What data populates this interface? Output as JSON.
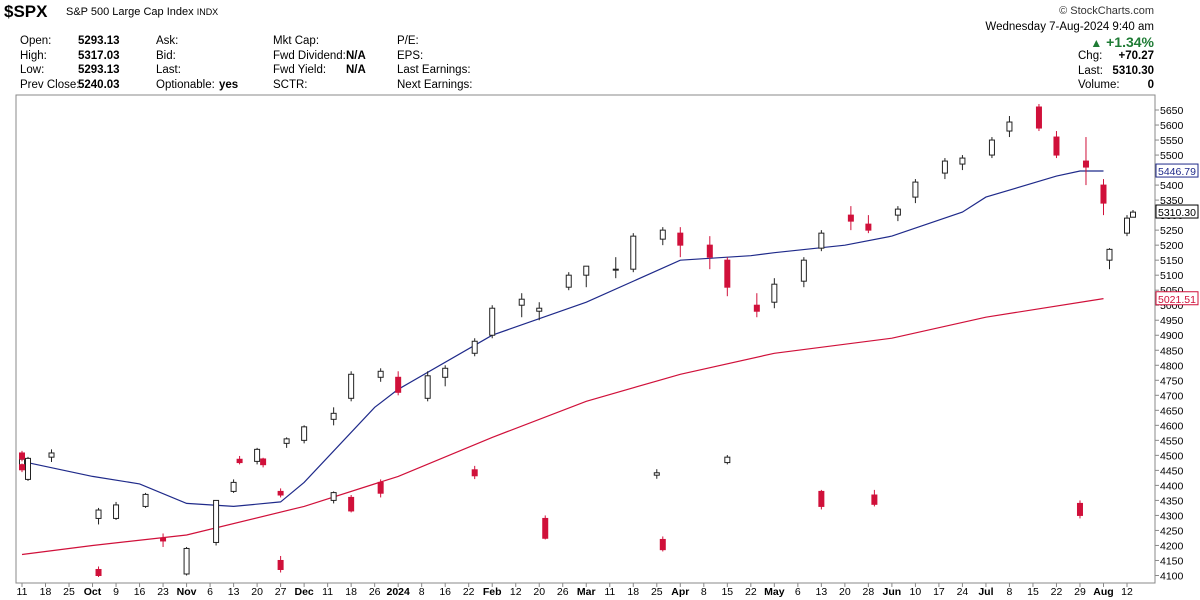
{
  "header": {
    "symbol": "$SPX",
    "name": "S&P 500 Large Cap Index",
    "exchange": "INDX",
    "brand": "© StockCharts.com",
    "datetime": "Wednesday  7-Aug-2024  9:40 am",
    "change_pct": "+1.34%",
    "change_color": "#1e7b34",
    "col1": [
      {
        "label": "Open:",
        "value": "5293.13"
      },
      {
        "label": "High:",
        "value": "5317.03"
      },
      {
        "label": "Low:",
        "value": "5293.13"
      },
      {
        "label": "Prev Close:",
        "value": "5240.03"
      }
    ],
    "col2": [
      {
        "label": "Ask:",
        "value": ""
      },
      {
        "label": "Bid:",
        "value": ""
      },
      {
        "label": "Last:",
        "value": ""
      },
      {
        "label": "Optionable:",
        "value": "yes"
      }
    ],
    "col3": [
      {
        "label": "Mkt Cap:",
        "value": ""
      },
      {
        "label": "Fwd Dividend:",
        "value": "N/A"
      },
      {
        "label": "Fwd Yield:",
        "value": "N/A"
      },
      {
        "label": "SCTR:",
        "value": ""
      }
    ],
    "col4": [
      {
        "label": "P/E:",
        "value": ""
      },
      {
        "label": "EPS:",
        "value": ""
      },
      {
        "label": "Last Earnings:",
        "value": ""
      },
      {
        "label": "Next Earnings:",
        "value": ""
      }
    ],
    "col5": [
      {
        "label": "Chg:",
        "value": "+70.27"
      },
      {
        "label": "Last:",
        "value": "5310.30"
      },
      {
        "label": "Volume:",
        "value": "0"
      }
    ]
  },
  "chart_data": {
    "type": "candlestick",
    "ylim": [
      4075,
      5700
    ],
    "yticks": [
      4100,
      4150,
      4200,
      4250,
      4300,
      4350,
      4400,
      4450,
      4500,
      4550,
      4600,
      4650,
      4700,
      4750,
      4800,
      4850,
      4900,
      4950,
      5000,
      5050,
      5100,
      5150,
      5200,
      5250,
      5300,
      5350,
      5400,
      5450,
      5500,
      5550,
      5600,
      5650
    ],
    "x_labels": [
      "11",
      "18",
      "25",
      "Oct",
      "9",
      "16",
      "23",
      "Nov",
      "6",
      "13",
      "20",
      "27",
      "Dec",
      "11",
      "18",
      "26",
      "2024",
      "8",
      "16",
      "22",
      "Feb",
      "12",
      "20",
      "26",
      "Mar",
      "11",
      "18",
      "25",
      "Apr",
      "8",
      "15",
      "22",
      "May",
      "6",
      "13",
      "20",
      "28",
      "Jun",
      "10",
      "17",
      "24",
      "Jul",
      "8",
      "15",
      "22",
      "29",
      "Aug",
      "12"
    ],
    "bold_labels": [
      "Oct",
      "Nov",
      "Dec",
      "2024",
      "Feb",
      "Mar",
      "Apr",
      "May",
      "Jun",
      "Jul",
      "Aug"
    ],
    "up_color": "#222222",
    "down_color": "#d0103a",
    "last_color": "#e8d31a",
    "ma_fast": {
      "label": "5446.79",
      "color": "#1f2a8a",
      "points": [
        [
          "11",
          4480
        ],
        [
          "Oct",
          4430
        ],
        [
          "16",
          4405
        ],
        [
          "Nov",
          4340
        ],
        [
          "13",
          4330
        ],
        [
          "27",
          4345
        ],
        [
          "Dec",
          4410
        ],
        [
          "26",
          4660
        ],
        [
          "2024",
          4720
        ],
        [
          "Feb",
          4900
        ],
        [
          "Mar",
          5010
        ],
        [
          "Apr",
          5150
        ],
        [
          "22",
          5165
        ],
        [
          "May",
          5175
        ],
        [
          "20",
          5200
        ],
        [
          "Jun",
          5230
        ],
        [
          "24",
          5310
        ],
        [
          "Jul",
          5360
        ],
        [
          "22",
          5430
        ],
        [
          "29",
          5447
        ],
        [
          "Aug",
          5447
        ]
      ]
    },
    "ma_slow": {
      "label": "5021.51",
      "color": "#d0103a",
      "points": [
        [
          "11",
          4170
        ],
        [
          "Oct",
          4200
        ],
        [
          "Nov",
          4235
        ],
        [
          "Dec",
          4330
        ],
        [
          "2024",
          4430
        ],
        [
          "Feb",
          4560
        ],
        [
          "Mar",
          4680
        ],
        [
          "Apr",
          4770
        ],
        [
          "May",
          4840
        ],
        [
          "Jun",
          4890
        ],
        [
          "Jul",
          4960
        ],
        [
          "Aug",
          5022
        ]
      ]
    },
    "price_label": "5310.30",
    "candles": [
      [
        "11",
        4462,
        4497,
        4454,
        4487
      ],
      [
        "13",
        4487,
        4498,
        4470,
        4476
      ],
      [
        "15",
        4476,
        4501,
        4470,
        4494
      ],
      [
        "18",
        4494,
        4520,
        4478,
        4508
      ],
      [
        "19",
        4508,
        4515,
        4480,
        4488
      ],
      [
        "20",
        4488,
        4492,
        4460,
        4469
      ],
      [
        "21",
        4469,
        4473,
        4444,
        4452
      ],
      [
        "22",
        4452,
        4465,
        4421,
        4432
      ],
      [
        "25",
        4434,
        4454,
        4422,
        4442
      ],
      [
        "26",
        4410,
        4420,
        4360,
        4374
      ],
      [
        "27",
        4380,
        4390,
        4360,
        4368
      ],
      [
        "28",
        4368,
        4385,
        4330,
        4337
      ],
      [
        "29",
        4340,
        4350,
        4290,
        4300
      ],
      [
        "Oct",
        4290,
        4325,
        4270,
        4318
      ],
      [
        "9",
        4290,
        4345,
        4285,
        4335
      ],
      [
        "11",
        4350,
        4380,
        4340,
        4376
      ],
      [
        "13",
        4380,
        4385,
        4320,
        4330
      ],
      [
        "16",
        4330,
        4375,
        4325,
        4370
      ],
      [
        "18",
        4360,
        4368,
        4310,
        4315
      ],
      [
        "20",
        4290,
        4300,
        4220,
        4224
      ],
      [
        "23",
        4224,
        4240,
        4195,
        4215
      ],
      [
        "25",
        4220,
        4230,
        4180,
        4186
      ],
      [
        "27",
        4150,
        4165,
        4110,
        4120
      ],
      [
        "Oct",
        4120,
        4130,
        4095,
        4100
      ],
      [
        "Nov",
        4105,
        4195,
        4100,
        4190
      ],
      [
        "6",
        4210,
        4350,
        4200,
        4350
      ],
      [
        "13",
        4380,
        4420,
        4375,
        4410
      ],
      [
        "14",
        4420,
        4495,
        4415,
        4490
      ],
      [
        "20",
        4480,
        4525,
        4470,
        4520
      ],
      [
        "27",
        4540,
        4560,
        4525,
        4555
      ],
      [
        "Dec",
        4550,
        4600,
        4540,
        4595
      ],
      [
        "11",
        4620,
        4660,
        4600,
        4640
      ],
      [
        "18",
        4690,
        4780,
        4680,
        4770
      ],
      [
        "26",
        4760,
        4790,
        4745,
        4780
      ],
      [
        "2024",
        4760,
        4780,
        4700,
        4710
      ],
      [
        "8",
        4690,
        4780,
        4680,
        4765
      ],
      [
        "16",
        4760,
        4800,
        4730,
        4790
      ],
      [
        "22",
        4840,
        4890,
        4830,
        4880
      ],
      [
        "Feb",
        4900,
        5000,
        4890,
        4990
      ],
      [
        "12",
        5000,
        5040,
        4960,
        5020
      ],
      [
        "20",
        4980,
        5010,
        4950,
        4990
      ],
      [
        "26",
        5060,
        5110,
        5050,
        5100
      ],
      [
        "Mar",
        5100,
        5130,
        5060,
        5130
      ],
      [
        "11",
        5120,
        5160,
        5090,
        5120
      ],
      [
        "18",
        5120,
        5240,
        5110,
        5230
      ],
      [
        "25",
        5220,
        5260,
        5200,
        5250
      ],
      [
        "Apr",
        5240,
        5260,
        5160,
        5200
      ],
      [
        "8",
        5200,
        5230,
        5120,
        5160
      ],
      [
        "15",
        5150,
        5160,
        5030,
        5060
      ],
      [
        "22",
        5000,
        5040,
        4960,
        4980
      ],
      [
        "May",
        5010,
        5090,
        4990,
        5070
      ],
      [
        "6",
        5080,
        5160,
        5060,
        5150
      ],
      [
        "13",
        5190,
        5250,
        5180,
        5240
      ],
      [
        "20",
        5300,
        5330,
        5250,
        5280
      ],
      [
        "28",
        5270,
        5300,
        5240,
        5250
      ],
      [
        "Jun",
        5300,
        5330,
        5280,
        5320
      ],
      [
        "10",
        5360,
        5420,
        5340,
        5410
      ],
      [
        "17",
        5440,
        5490,
        5420,
        5480
      ],
      [
        "24",
        5470,
        5500,
        5450,
        5490
      ],
      [
        "Jul",
        5500,
        5560,
        5490,
        5550
      ],
      [
        "8",
        5580,
        5630,
        5560,
        5610
      ],
      [
        "15",
        5660,
        5670,
        5580,
        5590
      ],
      [
        "22",
        5560,
        5580,
        5490,
        5500
      ],
      [
        "29",
        5480,
        5560,
        5400,
        5460
      ],
      [
        "Aug",
        5400,
        5420,
        5300,
        5340
      ],
      [
        "Aug",
        5150,
        5190,
        5120,
        5186
      ],
      [
        "12",
        5240,
        5300,
        5230,
        5290
      ],
      [
        "12",
        5293,
        5317,
        5293,
        5310
      ]
    ]
  }
}
